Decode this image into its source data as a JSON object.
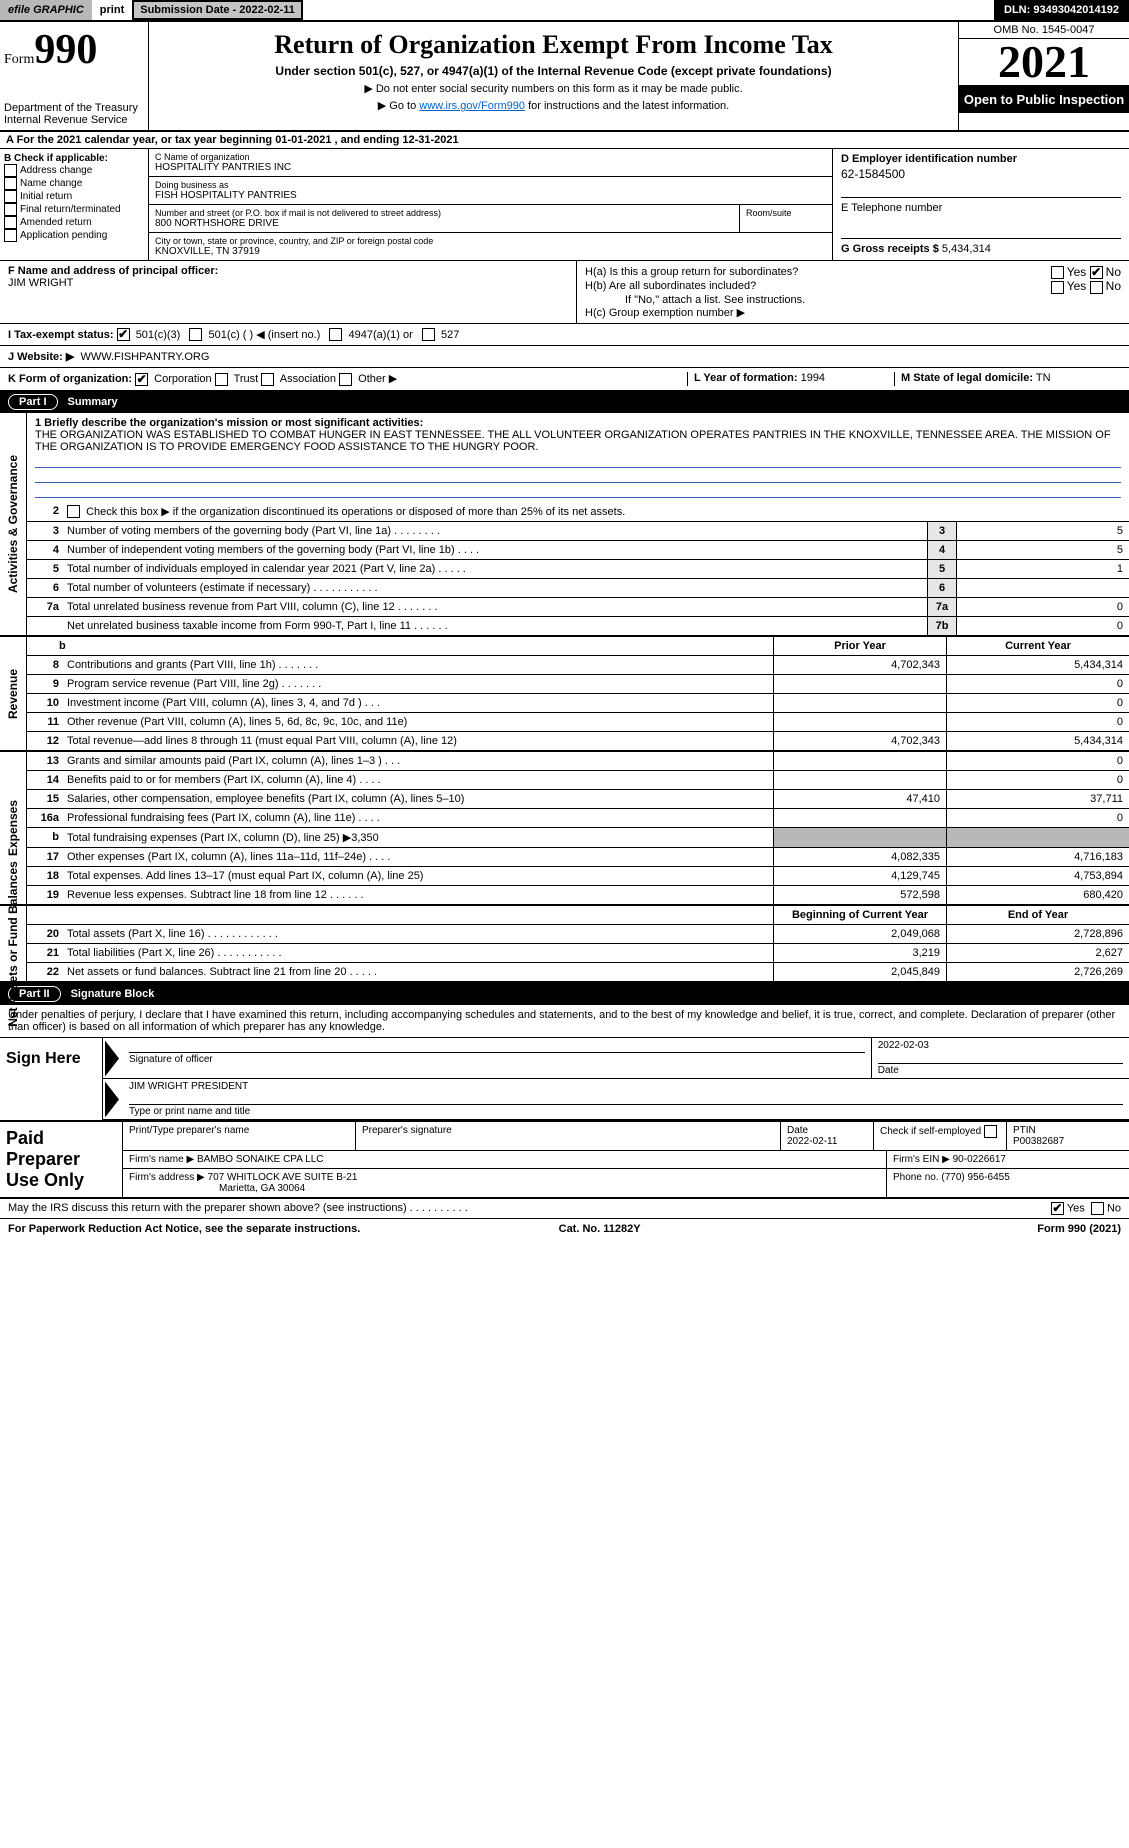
{
  "topbar": {
    "efile": "efile GRAPHIC",
    "print": "print",
    "submission_btn": "Submission Date - 2022-02-11",
    "dln": "DLN: 93493042014192"
  },
  "header": {
    "form_label": "Form",
    "form_num": "990",
    "dept": "Department of the Treasury",
    "irs": "Internal Revenue Service",
    "title": "Return of Organization Exempt From Income Tax",
    "subtitle": "Under section 501(c), 527, or 4947(a)(1) of the Internal Revenue Code (except private foundations)",
    "note1": "▶ Do not enter social security numbers on this form as it may be made public.",
    "note2_pre": "▶ Go to ",
    "note2_link": "www.irs.gov/Form990",
    "note2_post": " for instructions and the latest information.",
    "omb": "OMB No. 1545-0047",
    "year": "2021",
    "otp": "Open to Public Inspection"
  },
  "period": {
    "text": "A  For the 2021 calendar year, or tax year beginning 01-01-2021     , and ending 12-31-2021"
  },
  "blockB": {
    "hdr": "B Check if applicable:",
    "items": [
      "Address change",
      "Name change",
      "Initial return",
      "Final return/terminated",
      "Amended return",
      "Application pending"
    ]
  },
  "blockC": {
    "name_lbl": "C Name of organization",
    "name": "HOSPITALITY PANTRIES INC",
    "dba_lbl": "Doing business as",
    "dba": "FISH HOSPITALITY PANTRIES",
    "addr_lbl": "Number and street (or P.O. box if mail is not delivered to street address)",
    "room_lbl": "Room/suite",
    "addr": "800 NORTHSHORE DRIVE",
    "city_lbl": "City or town, state or province, country, and ZIP or foreign postal code",
    "city": "KNOXVILLE, TN  37919"
  },
  "blockD": {
    "ein_lbl": "D Employer identification number",
    "ein": "62-1584500",
    "tel_lbl": "E Telephone number",
    "gross_lbl": "G Gross receipts $",
    "gross": "5,434,314"
  },
  "blockF": {
    "lbl": "F Name and address of principal officer:",
    "name": "JIM WRIGHT"
  },
  "blockH": {
    "a": "H(a)  Is this a group return for subordinates?",
    "b": "H(b)  Are all subordinates included?",
    "b_note": "If \"No,\" attach a list. See instructions.",
    "c": "H(c)  Group exemption number ▶",
    "yes": "Yes",
    "no": "No"
  },
  "taxrow": {
    "lbl": "I   Tax-exempt status:",
    "o1": "501(c)(3)",
    "o2": "501(c) (  ) ◀ (insert no.)",
    "o3": "4947(a)(1) or",
    "o4": "527"
  },
  "web": {
    "lbl": "J   Website: ▶",
    "val": "WWW.FISHPANTRY.ORG"
  },
  "korg": {
    "lbl": "K Form of organization:",
    "opts": [
      "Corporation",
      "Trust",
      "Association",
      "Other ▶"
    ],
    "l_lbl": "L Year of formation:",
    "l_val": "1994",
    "m_lbl": "M State of legal domicile:",
    "m_val": "TN"
  },
  "part1": {
    "hdr": "Part I",
    "title": "Summary",
    "sections": {
      "gov": "Activities & Governance",
      "rev": "Revenue",
      "exp": "Expenses",
      "net": "Net Assets or Fund Balances"
    },
    "l1_lbl": "1  Briefly describe the organization's mission or most significant activities:",
    "l1_txt": "THE ORGANIZATION WAS ESTABLISHED TO COMBAT HUNGER IN EAST TENNESSEE. THE ALL VOLUNTEER ORGANIZATION OPERATES PANTRIES IN THE KNOXVILLE, TENNESSEE AREA. THE MISSION OF THE ORGANIZATION IS TO PROVIDE EMERGENCY FOOD ASSISTANCE TO THE HUNGRY POOR.",
    "l2": "Check this box ▶      if the organization discontinued its operations or disposed of more than 25% of its net assets.",
    "lines_single": [
      {
        "n": "3",
        "t": "Number of voting members of the governing body (Part VI, line 1a)   .    .    .    .    .    .    .    .",
        "b": "3",
        "v": "5"
      },
      {
        "n": "4",
        "t": "Number of independent voting members of the governing body (Part VI, line 1b)    .    .    .    .",
        "b": "4",
        "v": "5"
      },
      {
        "n": "5",
        "t": "Total number of individuals employed in calendar year 2021 (Part V, line 2a)   .    .    .    .    .",
        "b": "5",
        "v": "1"
      },
      {
        "n": "6",
        "t": "Total number of volunteers (estimate if necessary)    .    .    .    .    .    .    .    .    .    .    .",
        "b": "6",
        "v": ""
      },
      {
        "n": "7a",
        "t": "Total unrelated business revenue from Part VIII, column (C), line 12   .    .    .    .    .    .    .",
        "b": "7a",
        "v": "0"
      },
      {
        "n": "",
        "t": "Net unrelated business taxable income from Form 990-T, Part I, line 11   .    .    .    .    .    .",
        "b": "7b",
        "v": "0"
      }
    ],
    "col_py": "Prior Year",
    "col_cy": "Current Year",
    "rev_lines": [
      {
        "n": "8",
        "t": "Contributions and grants (Part VIII, line 1h)   .    .    .    .    .    .    .",
        "py": "4,702,343",
        "cy": "5,434,314"
      },
      {
        "n": "9",
        "t": "Program service revenue (Part VIII, line 2g)   .    .    .    .    .    .    .",
        "py": "",
        "cy": "0"
      },
      {
        "n": "10",
        "t": "Investment income (Part VIII, column (A), lines 3, 4, and 7d )   .    .    .",
        "py": "",
        "cy": "0"
      },
      {
        "n": "11",
        "t": "Other revenue (Part VIII, column (A), lines 5, 6d, 8c, 9c, 10c, and 11e)",
        "py": "",
        "cy": "0"
      },
      {
        "n": "12",
        "t": "Total revenue—add lines 8 through 11 (must equal Part VIII, column (A), line 12)",
        "py": "4,702,343",
        "cy": "5,434,314"
      }
    ],
    "exp_lines": [
      {
        "n": "13",
        "t": "Grants and similar amounts paid (Part IX, column (A), lines 1–3 )   .    .    .",
        "py": "",
        "cy": "0"
      },
      {
        "n": "14",
        "t": "Benefits paid to or for members (Part IX, column (A), line 4)   .    .    .    .",
        "py": "",
        "cy": "0"
      },
      {
        "n": "15",
        "t": "Salaries, other compensation, employee benefits (Part IX, column (A), lines 5–10)",
        "py": "47,410",
        "cy": "37,711"
      },
      {
        "n": "16a",
        "t": "Professional fundraising fees (Part IX, column (A), line 11e)   .    .    .    .",
        "py": "",
        "cy": "0"
      },
      {
        "n": "b",
        "t": "Total fundraising expenses (Part IX, column (D), line 25) ▶3,350",
        "py": "GRAY",
        "cy": "GRAY"
      },
      {
        "n": "17",
        "t": "Other expenses (Part IX, column (A), lines 11a–11d, 11f–24e)   .    .    .    .",
        "py": "4,082,335",
        "cy": "4,716,183"
      },
      {
        "n": "18",
        "t": "Total expenses. Add lines 13–17 (must equal Part IX, column (A), line 25)",
        "py": "4,129,745",
        "cy": "4,753,894"
      },
      {
        "n": "19",
        "t": "Revenue less expenses. Subtract line 18 from line 12   .    .    .    .    .    .",
        "py": "572,598",
        "cy": "680,420"
      }
    ],
    "col_bcy": "Beginning of Current Year",
    "col_eoy": "End of Year",
    "net_lines": [
      {
        "n": "20",
        "t": "Total assets (Part X, line 16)   .    .    .    .    .    .    .    .    .    .    .    .",
        "py": "2,049,068",
        "cy": "2,728,896"
      },
      {
        "n": "21",
        "t": "Total liabilities (Part X, line 26)   .    .    .    .    .    .    .    .    .    .    .",
        "py": "3,219",
        "cy": "2,627"
      },
      {
        "n": "22",
        "t": "Net assets or fund balances. Subtract line 21 from line 20   .    .    .    .    .",
        "py": "2,045,849",
        "cy": "2,726,269"
      }
    ]
  },
  "part2": {
    "hdr": "Part II",
    "title": "Signature Block",
    "penalty": "Under penalties of perjury, I declare that I have examined this return, including accompanying schedules and statements, and to the best of my knowledge and belief, it is true, correct, and complete. Declaration of preparer (other than officer) is based on all information of which preparer has any knowledge.",
    "sign_here": "Sign Here",
    "sig_officer_lbl": "Signature of officer",
    "date_lbl": "Date",
    "sig_date": "2022-02-03",
    "name_title": "JIM WRIGHT PRESIDENT",
    "name_title_lbl": "Type or print name and title",
    "paid": "Paid Preparer Use Only",
    "p_name_lbl": "Print/Type preparer's name",
    "p_sig_lbl": "Preparer's signature",
    "p_date_lbl": "Date",
    "p_date": "2022-02-11",
    "p_check": "Check         if self-employed",
    "ptin_lbl": "PTIN",
    "ptin": "P00382687",
    "firm_name_lbl": "Firm's name    ▶",
    "firm_name": "BAMBO SONAIKE CPA LLC",
    "firm_ein_lbl": "Firm's EIN ▶",
    "firm_ein": "90-0226617",
    "firm_addr_lbl": "Firm's address ▶",
    "firm_addr1": "707 WHITLOCK AVE SUITE B-21",
    "firm_addr2": "Marietta, GA  30064",
    "phone_lbl": "Phone no.",
    "phone": "(770) 956-6455",
    "discuss": "May the IRS discuss this return with the preparer shown above? (see instructions)   .    .    .    .    .    .    .    .    .    .",
    "yes": "Yes",
    "no": "No"
  },
  "footer": {
    "pra": "For Paperwork Reduction Act Notice, see the separate instructions.",
    "cat": "Cat. No. 11282Y",
    "form": "Form 990 (2021)"
  },
  "colors": {
    "bg": "#ffffff",
    "black": "#000000",
    "gray": "#b8b8b8",
    "boxgray": "#e6e6e6",
    "link": "#0066cc",
    "ul": "#3a5fb8"
  }
}
